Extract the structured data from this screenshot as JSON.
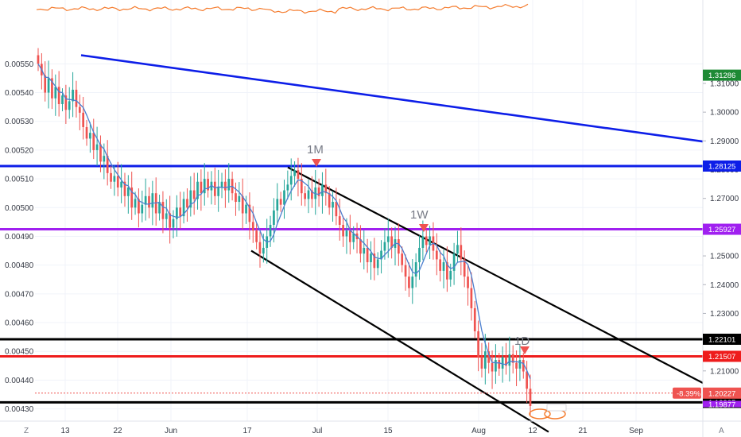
{
  "chart_data": {
    "type": "candlestick",
    "left_axis": {
      "ticks": [
        "0.00550",
        "0.00540",
        "0.00530",
        "0.00520",
        "0.00510",
        "0.00500",
        "0.00490",
        "0.00480",
        "0.00470",
        "0.00460",
        "0.00450",
        "0.00440",
        "0.00430"
      ],
      "range": [
        0.004285,
        0.005585
      ]
    },
    "right_axis": {
      "ticks": [
        "1.31000",
        "1.30000",
        "1.29000",
        "1.28000",
        "1.27000",
        "1.26000",
        "1.25000",
        "1.24000",
        "1.23000",
        "1.22000",
        "1.21000",
        "1.20000"
      ],
      "range": [
        1.1953,
        1.3253
      ]
    },
    "x_axis": {
      "ticks": [
        "13",
        "22",
        "Jun",
        "17",
        "Jul",
        "15",
        "Aug",
        "12",
        "21",
        "Sep"
      ]
    },
    "series": [
      {
        "ohlc_closes": [
          0.0055,
          0.00546,
          0.0054,
          0.00545,
          0.00538,
          0.00542,
          0.00536,
          0.00539,
          0.00534,
          0.00537,
          0.00541,
          0.00535,
          0.00533,
          0.00528,
          0.00524,
          0.00526,
          0.0052,
          0.00522,
          0.00516,
          0.00518,
          0.00512,
          0.00509,
          0.00511,
          0.00507,
          0.00509,
          0.00504,
          0.00507,
          0.005,
          0.00503,
          0.00498,
          0.00501,
          0.00504,
          0.005,
          0.00505,
          0.00498,
          0.00502,
          0.00496,
          0.00498,
          0.00493,
          0.00496,
          0.005,
          0.00497,
          0.00503,
          0.005,
          0.00506,
          0.00503,
          0.00509,
          0.00505,
          0.0051,
          0.00506,
          0.00509,
          0.00504,
          0.00507,
          0.00509,
          0.00506,
          0.0051,
          0.00505,
          0.00502,
          0.00504,
          0.00498,
          0.00501,
          0.00495,
          0.00492,
          0.00488,
          0.00484,
          0.00486,
          0.0049,
          0.00494,
          0.00499,
          0.00503,
          0.00501,
          0.00506,
          0.00508,
          0.00511,
          0.00513,
          0.0051,
          0.00505,
          0.00503,
          0.00506,
          0.00503,
          0.00507,
          0.00504,
          0.00508,
          0.00505,
          0.005,
          0.00502,
          0.00497,
          0.00494,
          0.0049,
          0.00492,
          0.00488,
          0.00491,
          0.00489,
          0.00484,
          0.00486,
          0.00481,
          0.00484,
          0.00479,
          0.00482,
          0.00485,
          0.00488,
          0.0049,
          0.00486,
          0.00489,
          0.00484,
          0.0048,
          0.00476,
          0.00472,
          0.00476,
          0.00481,
          0.00486,
          0.0049,
          0.00487,
          0.0049,
          0.00485,
          0.00482,
          0.00478,
          0.00481,
          0.00475,
          0.00478,
          0.00484,
          0.00487,
          0.00482,
          0.00476,
          0.00472,
          0.00465,
          0.00457,
          0.00448,
          0.00444,
          0.0045,
          0.00446,
          0.00443,
          0.00447,
          0.00444,
          0.00448,
          0.00445,
          0.00449,
          0.00446,
          0.00444,
          0.00447,
          0.00443,
          0.00437,
          0.00431
        ]
      }
    ],
    "moving_average": {
      "color": "#4c7fcf"
    },
    "candle_colors": {
      "up": "#26a69a",
      "down": "#ef5350"
    },
    "horizontal_lines": [
      {
        "price": "1.28125",
        "color": "#0d1ee8"
      },
      {
        "price": "1.25927",
        "color": "#a020f0"
      },
      {
        "price": "1.22101",
        "color": "#000000"
      },
      {
        "price": "1.21507",
        "color": "#ee1c1c"
      },
      {
        "price": "1.19905",
        "color": "#000000"
      }
    ],
    "top_label": {
      "price": "1.31286",
      "color": "#1e8a35"
    },
    "current_label": {
      "price": "1.20227",
      "change": "-8.39%",
      "color": "#ef5350"
    },
    "partial_bottom_label": {
      "price": "1.19877",
      "color": "#a020f0"
    },
    "trend_lines": [
      {
        "color": "#0d1ee8",
        "from": [
          0.00553,
          0.00553
        ],
        "to": [
          0.00523,
          0.00523
        ]
      },
      {
        "color": "#000000",
        "from": [
          0.00514,
          0.00514
        ],
        "to": [
          0.00439,
          0.00439
        ]
      },
      {
        "color": "#000000",
        "from": [
          0.00485,
          0.00485
        ],
        "to": [
          0.00422,
          0.00422
        ]
      }
    ],
    "annotations": [
      "1M",
      "1W",
      "1D"
    ],
    "corner_labels": {
      "left": "Z",
      "right": "A"
    },
    "oscillator_color": "#f57c2e"
  }
}
